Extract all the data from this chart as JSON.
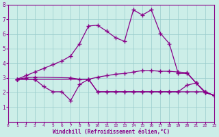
{
  "xlabel": "Windchill (Refroidissement éolien,°C)",
  "xlim": [
    0,
    23
  ],
  "ylim": [
    0,
    8
  ],
  "xticks": [
    0,
    1,
    2,
    3,
    4,
    5,
    6,
    7,
    8,
    9,
    10,
    11,
    12,
    13,
    14,
    15,
    16,
    17,
    18,
    19,
    20,
    21,
    22,
    23
  ],
  "yticks": [
    1,
    2,
    3,
    4,
    5,
    6,
    7,
    8
  ],
  "background_color": "#cceee8",
  "line_color": "#880088",
  "grid_color": "#99cccc",
  "lines": [
    {
      "x": [
        1,
        2,
        3,
        4,
        5,
        6,
        7,
        8,
        9,
        10,
        11,
        12,
        13,
        14,
        15,
        16,
        17,
        18,
        19,
        20,
        21,
        22,
        23
      ],
      "y": [
        2.9,
        3.15,
        3.4,
        3.65,
        3.9,
        4.15,
        4.5,
        5.35,
        6.55,
        6.6,
        6.2,
        5.75,
        5.5,
        7.65,
        7.3,
        7.65,
        6.05,
        5.35,
        3.3,
        3.3,
        2.65,
        2.0,
        1.8
      ]
    },
    {
      "x": [
        1,
        2,
        3,
        7,
        8,
        9,
        10,
        11,
        12,
        13,
        14,
        15,
        16,
        17,
        18,
        19,
        20,
        21,
        22,
        23
      ],
      "y": [
        2.9,
        3.0,
        3.05,
        3.0,
        2.9,
        2.9,
        3.05,
        3.15,
        3.25,
        3.3,
        3.4,
        3.5,
        3.5,
        3.45,
        3.45,
        3.4,
        3.35,
        2.65,
        2.0,
        1.8
      ]
    },
    {
      "x": [
        1,
        3,
        4,
        5,
        6,
        7,
        8,
        9,
        10,
        11,
        12,
        13,
        14,
        15,
        16,
        17,
        18,
        19,
        20,
        21,
        22,
        23
      ],
      "y": [
        2.9,
        2.9,
        2.4,
        2.05,
        2.05,
        1.45,
        2.55,
        2.9,
        2.05,
        2.05,
        2.05,
        2.05,
        2.05,
        2.05,
        2.05,
        2.05,
        2.05,
        2.05,
        2.5,
        2.65,
        2.05,
        1.8
      ]
    },
    {
      "x": [
        1,
        3,
        9,
        10,
        11,
        12,
        13,
        14,
        15,
        16,
        17,
        18,
        19,
        20,
        21,
        22,
        23
      ],
      "y": [
        2.9,
        2.9,
        2.9,
        2.05,
        2.05,
        2.05,
        2.05,
        2.05,
        2.05,
        2.05,
        2.05,
        2.05,
        2.05,
        2.05,
        2.05,
        2.05,
        1.8
      ]
    }
  ]
}
